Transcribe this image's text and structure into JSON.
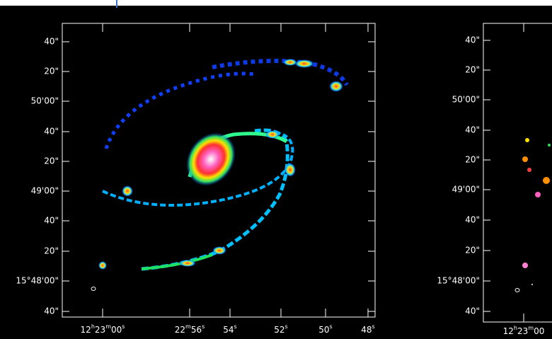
{
  "panels": [
    {
      "y_tick_labels": [
        "40\"",
        "20\"",
        "50'00\"",
        "40\"",
        "20\"",
        "49'00\"",
        "40\"",
        "20\"",
        "15°48'00\"",
        "40\""
      ],
      "x_tick_labels": [
        [
          "12",
          "h",
          "23",
          "m",
          "00",
          "s"
        ],
        [
          "22",
          "m",
          "56",
          "s"
        ],
        [
          "54",
          "s"
        ],
        [
          "52",
          "s"
        ],
        [
          "50",
          "s"
        ],
        [
          "48",
          "s"
        ]
      ]
    },
    {
      "y_tick_labels": [
        "40\"",
        "20\"",
        "50'00\"",
        "40\"",
        "20\"",
        "49'00\"",
        "40\"",
        "20\"",
        "15°48'00\"",
        "40\""
      ],
      "x_tick_labels": [
        [
          "12",
          "h",
          "23",
          "m",
          "00"
        ]
      ]
    }
  ]
}
